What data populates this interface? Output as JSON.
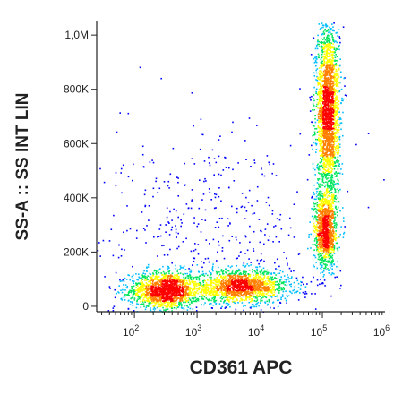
{
  "chart_data": {
    "type": "scatter",
    "plot_style": "flow-cytometry pseudocolor density dot plot",
    "xlabel": "CD361 APC",
    "ylabel": "SS-A :: SS INT LIN",
    "x_scale": "log",
    "y_scale": "linear",
    "xlim": [
      25,
      1000000
    ],
    "ylim": [
      -20000,
      1050000
    ],
    "x_ticks": [
      {
        "value": 100,
        "base": "10",
        "exp": "2"
      },
      {
        "value": 1000,
        "base": "10",
        "exp": "3"
      },
      {
        "value": 10000,
        "base": "10",
        "exp": "4"
      },
      {
        "value": 100000,
        "base": "10",
        "exp": "5"
      },
      {
        "value": 1000000,
        "base": "10",
        "exp": "6"
      }
    ],
    "y_ticks": [
      {
        "value": 0,
        "label": "0"
      },
      {
        "value": 200000,
        "label": "200K"
      },
      {
        "value": 400000,
        "label": "400K"
      },
      {
        "value": 600000,
        "label": "600K"
      },
      {
        "value": 800000,
        "label": "800K"
      },
      {
        "value": 1000000,
        "label": "1,0M"
      }
    ],
    "grid": false,
    "color_scale": [
      "#0000ff",
      "#00bfff",
      "#00e65c",
      "#ffff00",
      "#ff8000",
      "#ff0000"
    ],
    "populations": [
      {
        "x_center": 300,
        "y_center": 60000,
        "x_spread_decades": 0.28,
        "y_spread": 35000,
        "weight": 0.22
      },
      {
        "x_center": 5000,
        "y_center": 75000,
        "x_spread_decades": 0.4,
        "y_spread": 30000,
        "weight": 0.22
      },
      {
        "x_center": 120000,
        "y_center": 720000,
        "x_spread_decades": 0.09,
        "y_spread": 170000,
        "weight": 0.34
      },
      {
        "x_center": 110000,
        "y_center": 280000,
        "x_spread_decades": 0.09,
        "y_spread": 70000,
        "weight": 0.15
      },
      {
        "x_center": 1500,
        "y_center": 250000,
        "x_spread_decades": 0.9,
        "y_spread": 200000,
        "weight": 0.07
      }
    ]
  }
}
